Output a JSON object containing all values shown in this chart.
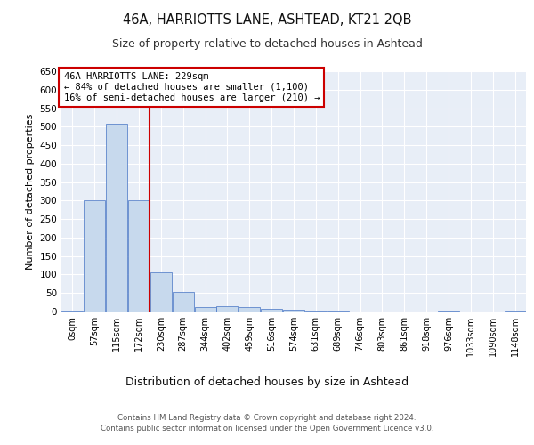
{
  "title1": "46A, HARRIOTTS LANE, ASHTEAD, KT21 2QB",
  "title2": "Size of property relative to detached houses in Ashtead",
  "xlabel": "Distribution of detached houses by size in Ashtead",
  "ylabel": "Number of detached properties",
  "annotation_line1": "46A HARRIOTTS LANE: 229sqm",
  "annotation_line2": "← 84% of detached houses are smaller (1,100)",
  "annotation_line3": "16% of semi-detached houses are larger (210) →",
  "footer1": "Contains HM Land Registry data © Crown copyright and database right 2024.",
  "footer2": "Contains public sector information licensed under the Open Government Licence v3.0.",
  "bin_labels": [
    "0sqm",
    "57sqm",
    "115sqm",
    "172sqm",
    "230sqm",
    "287sqm",
    "344sqm",
    "402sqm",
    "459sqm",
    "516sqm",
    "574sqm",
    "631sqm",
    "689sqm",
    "746sqm",
    "803sqm",
    "861sqm",
    "918sqm",
    "976sqm",
    "1033sqm",
    "1090sqm",
    "1148sqm"
  ],
  "bar_heights": [
    3,
    300,
    507,
    300,
    107,
    52,
    12,
    15,
    13,
    8,
    5,
    2,
    2,
    0,
    0,
    0,
    0,
    3,
    0,
    0,
    2
  ],
  "bar_color": "#c7d9ed",
  "bar_edge_color": "#4472c4",
  "property_line_color": "#cc0000",
  "annotation_box_color": "#cc0000",
  "background_color": "#e8eef7",
  "grid_color": "#ffffff",
  "ylim": [
    0,
    650
  ],
  "yticks": [
    0,
    50,
    100,
    150,
    200,
    250,
    300,
    350,
    400,
    450,
    500,
    550,
    600,
    650
  ]
}
